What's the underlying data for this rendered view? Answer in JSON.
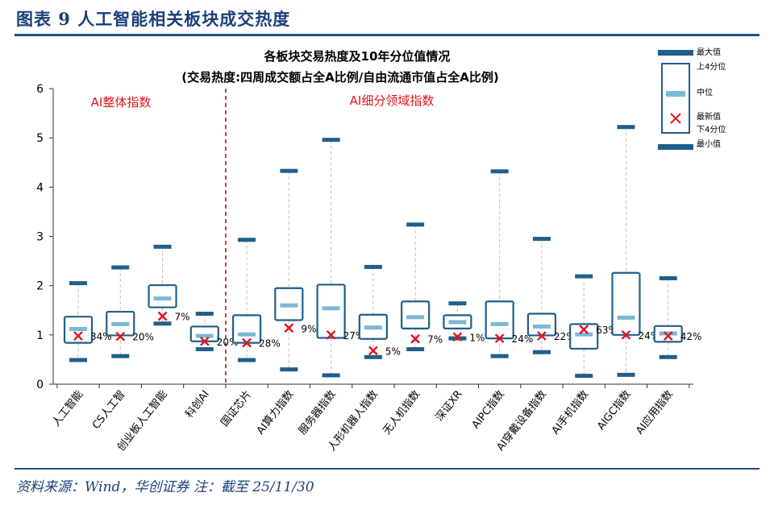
{
  "figure": {
    "title": "图表 9   人工智能相关板块成交热度",
    "source": "资料来源：Wind，华创证券    注：截至 25/11/30"
  },
  "colors": {
    "box": "#1f5f8b",
    "median": "#7db8d6",
    "latest": "#e0141e",
    "whisker": "#bdbdbd",
    "divider": "#c00000",
    "section_text": "#e0141e",
    "title": "#1c3f7a"
  },
  "chart_data": {
    "type": "boxplot",
    "title": "各板块交易热度及10年分位值情况",
    "subtitle": "(交易热度:四周成交额占全A比例/自由流通市值占全A比例)",
    "ylim": [
      0,
      6
    ],
    "yticks": [
      "0",
      "1",
      "2",
      "3",
      "4",
      "5",
      "6"
    ],
    "sections": [
      "AI整体指数",
      "AI细分领域指数"
    ],
    "legend": [
      "最大值",
      "上4分位",
      "中位",
      "最新值",
      "下4分位",
      "最小值"
    ],
    "categories": [
      "人工智能",
      "CS人工智",
      "创业板人工智能",
      "科创AI",
      "国证芯片",
      "AI算力指数",
      "服务器指数",
      "人形机器人指数",
      "无人机指数",
      "深证XR",
      "AIPC指数",
      "AI穿戴设备指数",
      "AI手机指数",
      "AIGC指数",
      "AI应用指数"
    ],
    "series": [
      {
        "name": "最大值",
        "values": [
          2.05,
          2.37,
          2.79,
          1.43,
          2.93,
          4.33,
          4.96,
          2.38,
          3.24,
          1.64,
          4.32,
          2.95,
          2.19,
          5.22,
          2.15
        ]
      },
      {
        "name": "上4分位",
        "values": [
          1.37,
          1.47,
          2.01,
          1.17,
          1.4,
          1.95,
          2.02,
          1.41,
          1.68,
          1.4,
          1.68,
          1.43,
          1.22,
          2.26,
          1.18
        ]
      },
      {
        "name": "中位",
        "values": [
          1.12,
          1.22,
          1.74,
          0.98,
          1.01,
          1.6,
          1.54,
          1.15,
          1.36,
          1.26,
          1.22,
          1.17,
          1.01,
          1.35,
          1.03
        ]
      },
      {
        "name": "下4分位",
        "values": [
          0.84,
          0.99,
          1.56,
          0.87,
          0.84,
          1.3,
          0.94,
          0.92,
          1.13,
          1.13,
          0.93,
          0.99,
          0.72,
          1.0,
          0.86
        ]
      },
      {
        "name": "最小值",
        "values": [
          0.49,
          0.57,
          1.23,
          0.71,
          0.49,
          0.3,
          0.18,
          0.55,
          0.71,
          0.93,
          0.57,
          0.65,
          0.17,
          0.19,
          0.55
        ]
      },
      {
        "name": "最新值",
        "values": [
          0.98,
          0.97,
          1.38,
          0.87,
          0.84,
          1.14,
          1.0,
          0.68,
          0.92,
          0.96,
          0.93,
          0.98,
          1.11,
          1.0,
          0.98
        ]
      }
    ],
    "latest_labels": [
      "34%",
      "20%",
      "7%",
      "20%",
      "28%",
      "9%",
      "27%",
      "5%",
      "7%",
      "1%",
      "24%",
      "22%",
      "63%",
      "24%",
      "42%"
    ]
  }
}
